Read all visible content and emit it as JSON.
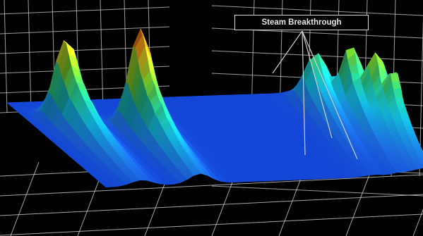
{
  "chart_data": {
    "type": "surface-3d",
    "title": "",
    "annotation": "Steam Breakthrough",
    "background_color": "#000000",
    "grid_color": "#cfcfcf",
    "grid": true,
    "axes": {
      "x": {
        "label": "",
        "ticks": []
      },
      "y": {
        "label": "",
        "ticks": []
      },
      "z": {
        "label": "",
        "ticks": []
      }
    },
    "colormap": [
      "#0a1ec8",
      "#1e6ee6",
      "#14c8f0",
      "#2ae6a0",
      "#7ee632",
      "#e6e628",
      "#f08c14",
      "#dc1414"
    ],
    "baseline_level": 0.12,
    "peaks": [
      {
        "row": 0.11,
        "col": 0.21,
        "height": 0.85
      },
      {
        "row": 0.29,
        "col": 0.32,
        "height": 1.0
      },
      {
        "row": 0.83,
        "col": 0.08,
        "height": 0.53
      },
      {
        "row": 0.91,
        "col": 0.17,
        "height": 0.65
      },
      {
        "row": 0.96,
        "col": 0.29,
        "height": 0.69
      },
      {
        "row": 0.99,
        "col": 0.41,
        "height": 0.62
      }
    ]
  }
}
